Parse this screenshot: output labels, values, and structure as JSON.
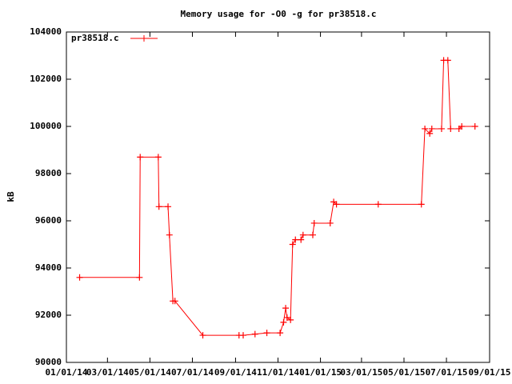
{
  "chart_data": {
    "type": "line",
    "title": "Memory usage for -O0 -g for pr38518.c",
    "y_label": "kB",
    "legend_position": "top-left",
    "xlim": [
      "2014-01-01",
      "2015-09-01"
    ],
    "xticks": [
      {
        "value": "2014-01-01",
        "label": "01/01/14"
      },
      {
        "value": "2014-03-01",
        "label": "03/01/14"
      },
      {
        "value": "2014-05-01",
        "label": "05/01/14"
      },
      {
        "value": "2014-07-01",
        "label": "07/01/14"
      },
      {
        "value": "2014-09-01",
        "label": "09/01/14"
      },
      {
        "value": "2014-11-01",
        "label": "11/01/14"
      },
      {
        "value": "2015-01-01",
        "label": "01/01/15"
      },
      {
        "value": "2015-03-01",
        "label": "03/01/15"
      },
      {
        "value": "2015-05-01",
        "label": "05/01/15"
      },
      {
        "value": "2015-07-01",
        "label": "07/01/15"
      },
      {
        "value": "2015-09-01",
        "label": "09/01/15"
      }
    ],
    "ylim": [
      90000,
      104000
    ],
    "yticks": [
      90000,
      92000,
      94000,
      96000,
      98000,
      100000,
      102000,
      104000
    ],
    "x": [
      "2014-01-20",
      "2014-04-16",
      "2014-04-17",
      "2014-05-13",
      "2014-05-14",
      "2014-05-27",
      "2014-05-29",
      "2014-06-03",
      "2014-06-06",
      "2014-07-16",
      "2014-09-06",
      "2014-09-12",
      "2014-09-29",
      "2014-10-16",
      "2014-11-04",
      "2014-11-09",
      "2014-11-12",
      "2014-11-14",
      "2014-11-19",
      "2014-11-22",
      "2014-11-26",
      "2014-12-04",
      "2014-12-07",
      "2014-12-21",
      "2014-12-23",
      "2015-01-15",
      "2015-01-20",
      "2015-01-24",
      "2015-03-25",
      "2015-05-26",
      "2015-05-31",
      "2015-06-07",
      "2015-06-10",
      "2015-06-24",
      "2015-06-27",
      "2015-07-03",
      "2015-07-07",
      "2015-07-19",
      "2015-07-23",
      "2015-08-11"
    ],
    "series": [
      {
        "name": "pr38518.c",
        "color": "#ff0000",
        "values": [
          93600,
          93600,
          98700,
          98700,
          96600,
          96600,
          95400,
          92600,
          92600,
          91150,
          91150,
          91150,
          91200,
          91250,
          91250,
          91700,
          92300,
          91900,
          91800,
          95000,
          95200,
          95200,
          95400,
          95400,
          95900,
          95900,
          96800,
          96700,
          96700,
          96700,
          99900,
          99700,
          99900,
          99900,
          102800,
          102800,
          99900,
          99900,
          100000,
          100000
        ]
      }
    ]
  }
}
